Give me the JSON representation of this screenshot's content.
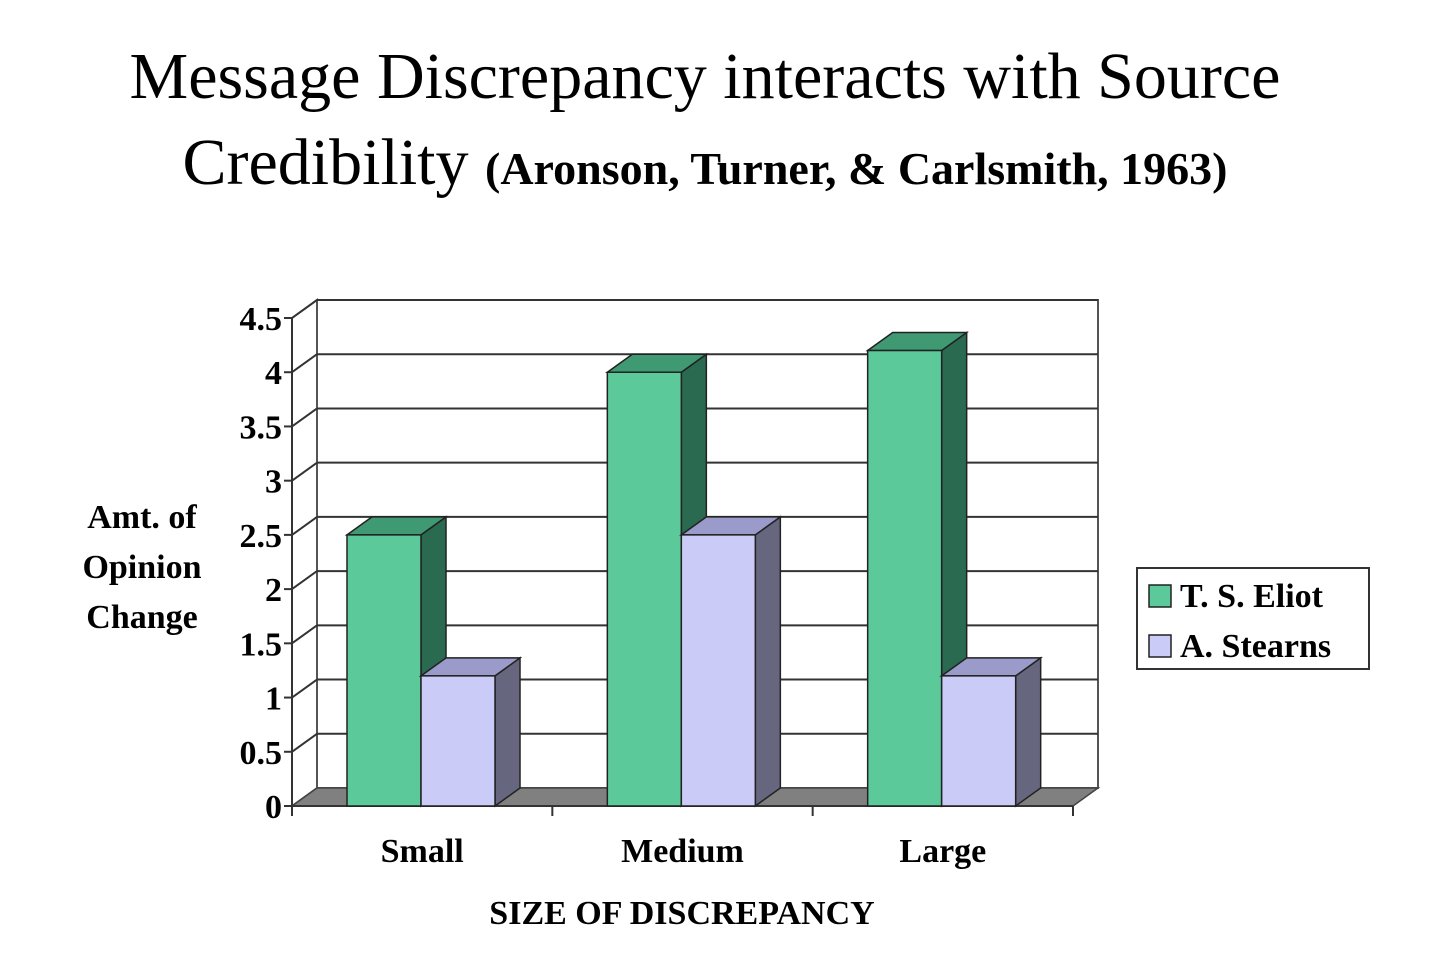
{
  "chart_data": {
    "type": "bar",
    "title": "Message Discrepancy interacts with Source",
    "title_line2": "Credibility",
    "citation": "(Aronson, Turner, & Carlsmith, 1963)",
    "xlabel": "SIZE OF DISCREPANCY",
    "ylabel": [
      "Amt. of",
      "Opinion",
      "Change"
    ],
    "categories": [
      "Small",
      "Medium",
      "Large"
    ],
    "series": [
      {
        "name": "T. S. Eliot",
        "values": [
          2.5,
          4.0,
          4.2
        ],
        "color": "#5cc99a",
        "side": "#2a6a50",
        "top": "#3f9a74"
      },
      {
        "name": "A. Stearns",
        "values": [
          1.2,
          2.5,
          1.2
        ],
        "color": "#cbcbf7",
        "side": "#66667e",
        "top": "#9a9acb"
      }
    ],
    "ylim": [
      0,
      4.5
    ],
    "yticks": [
      "0",
      "0.5",
      "1",
      "1.5",
      "2",
      "2.5",
      "3",
      "3.5",
      "4",
      "4.5"
    ],
    "grid": true,
    "legend": "right",
    "style": "3d-column"
  }
}
